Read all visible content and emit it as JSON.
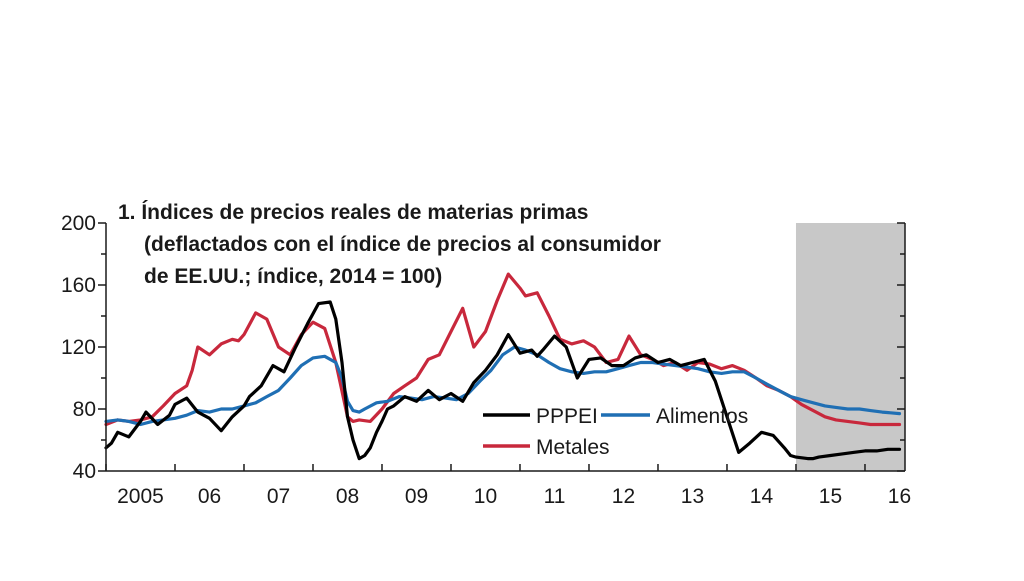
{
  "chart_data": {
    "type": "line",
    "title_lines": [
      "1. Índices de precios reales de materias primas",
      "(deflactados con el índice de precios al consumidor",
      "de EE.UU.; índice, 2014 = 100)"
    ],
    "ylim": [
      40,
      200
    ],
    "yticks": [
      "40",
      "80",
      "120",
      "160",
      "200"
    ],
    "xlim": [
      2005.0,
      2016.58
    ],
    "xticks": [
      "2005",
      "06",
      "07",
      "08",
      "09",
      "10",
      "11",
      "12",
      "13",
      "14",
      "15",
      "16"
    ],
    "shaded_region": {
      "from": 2015.0,
      "to": 2016.58,
      "color": "#c8c8c8"
    },
    "legend": {
      "placement": "lower-center"
    },
    "grid": false,
    "series": [
      {
        "name": "PPPEI",
        "color": "#000000",
        "x": [
          2005.0,
          2005.08,
          2005.17,
          2005.33,
          2005.5,
          2005.58,
          2005.75,
          2005.92,
          2006.0,
          2006.17,
          2006.33,
          2006.5,
          2006.67,
          2006.83,
          2007.0,
          2007.08,
          2007.25,
          2007.42,
          2007.58,
          2007.75,
          2007.92,
          2008.08,
          2008.25,
          2008.33,
          2008.42,
          2008.5,
          2008.58,
          2008.67,
          2008.75,
          2008.83,
          2008.92,
          2009.0,
          2009.08,
          2009.17,
          2009.33,
          2009.5,
          2009.67,
          2009.83,
          2010.0,
          2010.17,
          2010.33,
          2010.5,
          2010.67,
          2010.83,
          2011.0,
          2011.17,
          2011.25,
          2011.33,
          2011.5,
          2011.67,
          2011.83,
          2012.0,
          2012.17,
          2012.33,
          2012.5,
          2012.67,
          2012.83,
          2013.0,
          2013.17,
          2013.33,
          2013.5,
          2013.67,
          2013.83,
          2014.0,
          2014.17,
          2014.33,
          2014.5,
          2014.67,
          2014.83,
          2014.92,
          2015.0,
          2015.17,
          2015.25,
          2015.33,
          2015.5,
          2015.67,
          2015.83,
          2016.0,
          2016.17,
          2016.33,
          2016.5
        ],
        "values": [
          55,
          58,
          65,
          62,
          72,
          78,
          70,
          76,
          83,
          87,
          78,
          74,
          66,
          75,
          82,
          88,
          95,
          108,
          104,
          120,
          135,
          148,
          149,
          138,
          110,
          75,
          60,
          48,
          50,
          55,
          65,
          72,
          80,
          82,
          88,
          85,
          92,
          86,
          90,
          85,
          97,
          105,
          115,
          128,
          116,
          118,
          114,
          118,
          127,
          120,
          100,
          112,
          113,
          108,
          108,
          113,
          115,
          110,
          112,
          108,
          110,
          112,
          98,
          75,
          52,
          58,
          65,
          63,
          55,
          50,
          49,
          48,
          48,
          49,
          50,
          51,
          52,
          53,
          53,
          54,
          54
        ]
      },
      {
        "name": "Alimentos",
        "color": "#1f6fb4",
        "x": [
          2005.0,
          2005.17,
          2005.33,
          2005.5,
          2005.67,
          2005.83,
          2006.0,
          2006.17,
          2006.33,
          2006.5,
          2006.67,
          2006.83,
          2007.0,
          2007.17,
          2007.33,
          2007.5,
          2007.67,
          2007.83,
          2008.0,
          2008.17,
          2008.33,
          2008.42,
          2008.5,
          2008.58,
          2008.67,
          2008.75,
          2008.92,
          2009.08,
          2009.25,
          2009.42,
          2009.58,
          2009.75,
          2009.92,
          2010.08,
          2010.25,
          2010.42,
          2010.58,
          2010.75,
          2010.92,
          2011.08,
          2011.25,
          2011.42,
          2011.58,
          2011.75,
          2011.92,
          2012.08,
          2012.25,
          2012.42,
          2012.58,
          2012.75,
          2012.92,
          2013.08,
          2013.25,
          2013.42,
          2013.58,
          2013.75,
          2013.92,
          2014.08,
          2014.25,
          2014.42,
          2014.58,
          2014.75,
          2014.92,
          2015.08,
          2015.25,
          2015.42,
          2015.58,
          2015.75,
          2015.92,
          2016.08,
          2016.25,
          2016.5
        ],
        "values": [
          72,
          73,
          72,
          70,
          72,
          73,
          74,
          76,
          79,
          78,
          80,
          80,
          82,
          84,
          88,
          92,
          100,
          108,
          113,
          114,
          110,
          100,
          85,
          79,
          78,
          80,
          84,
          85,
          88,
          87,
          86,
          88,
          87,
          86,
          90,
          98,
          105,
          115,
          120,
          118,
          115,
          110,
          106,
          104,
          103,
          104,
          104,
          106,
          108,
          110,
          110,
          109,
          108,
          107,
          106,
          104,
          103,
          104,
          104,
          100,
          96,
          92,
          88,
          86,
          84,
          82,
          81,
          80,
          80,
          79,
          78,
          77
        ]
      },
      {
        "name": "Metales",
        "color": "#c8283c",
        "x": [
          2005.0,
          2005.17,
          2005.33,
          2005.5,
          2005.67,
          2005.83,
          2006.0,
          2006.17,
          2006.25,
          2006.33,
          2006.5,
          2006.67,
          2006.83,
          2006.92,
          2007.0,
          2007.17,
          2007.33,
          2007.5,
          2007.67,
          2007.83,
          2008.0,
          2008.17,
          2008.33,
          2008.5,
          2008.58,
          2008.67,
          2008.83,
          2009.0,
          2009.17,
          2009.33,
          2009.5,
          2009.67,
          2009.83,
          2010.0,
          2010.17,
          2010.33,
          2010.5,
          2010.67,
          2010.83,
          2011.0,
          2011.08,
          2011.25,
          2011.42,
          2011.58,
          2011.75,
          2011.92,
          2012.08,
          2012.25,
          2012.42,
          2012.58,
          2012.75,
          2012.92,
          2013.08,
          2013.25,
          2013.42,
          2013.58,
          2013.75,
          2013.92,
          2014.08,
          2014.25,
          2014.42,
          2014.58,
          2014.75,
          2014.92,
          2015.08,
          2015.25,
          2015.42,
          2015.58,
          2015.75,
          2015.92,
          2016.08,
          2016.25,
          2016.5
        ],
        "values": [
          70,
          73,
          72,
          73,
          75,
          82,
          90,
          95,
          105,
          120,
          115,
          122,
          125,
          124,
          128,
          142,
          138,
          120,
          115,
          128,
          136,
          132,
          110,
          75,
          72,
          73,
          72,
          80,
          90,
          95,
          100,
          112,
          115,
          130,
          145,
          120,
          130,
          150,
          167,
          158,
          153,
          155,
          140,
          125,
          122,
          124,
          120,
          110,
          112,
          127,
          115,
          112,
          108,
          110,
          105,
          110,
          109,
          106,
          108,
          105,
          100,
          95,
          92,
          88,
          83,
          79,
          75,
          73,
          72,
          71,
          70,
          70,
          70
        ]
      }
    ]
  }
}
